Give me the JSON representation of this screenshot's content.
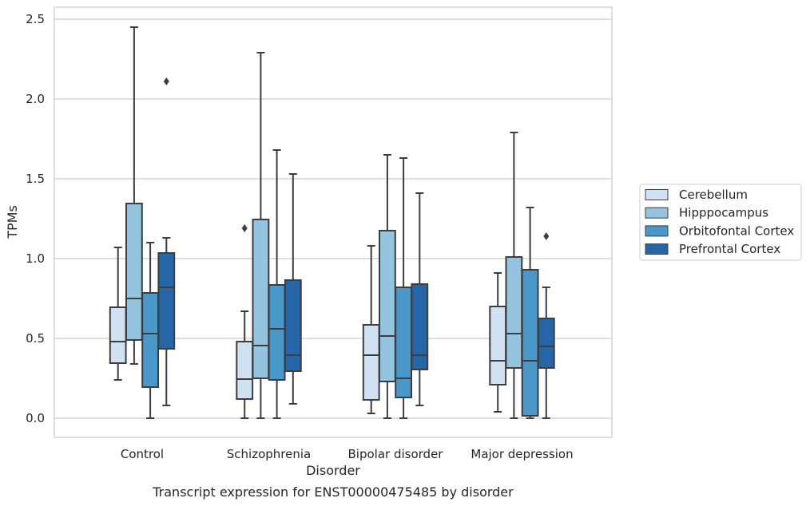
{
  "chart_data": {
    "type": "box",
    "title": "",
    "caption": "Transcript expression for ENST00000475485 by disorder",
    "xlabel": "Disorder",
    "ylabel": "TPMs",
    "ylim": [
      -0.12,
      2.58
    ],
    "yticks": [
      0.0,
      0.5,
      1.0,
      1.5,
      2.0,
      2.5
    ],
    "ytick_labels": [
      "0.0",
      "0.5",
      "1.0",
      "1.5",
      "2.0",
      "2.5"
    ],
    "categories": [
      "Control",
      "Schizophrenia",
      "Bipolar disorder",
      "Major depression"
    ],
    "grid": true,
    "legend_position": "right",
    "series": [
      {
        "name": "Cerebellum",
        "color": "#d0e1f2",
        "boxes": [
          {
            "whisker_low": 0.24,
            "q1": 0.345,
            "median": 0.48,
            "q3": 0.695,
            "whisker_high": 1.07,
            "outliers": []
          },
          {
            "whisker_low": 0.0,
            "q1": 0.12,
            "median": 0.245,
            "q3": 0.48,
            "whisker_high": 0.67,
            "outliers": [
              1.19
            ]
          },
          {
            "whisker_low": 0.03,
            "q1": 0.115,
            "median": 0.395,
            "q3": 0.585,
            "whisker_high": 1.08,
            "outliers": []
          },
          {
            "whisker_low": 0.04,
            "q1": 0.21,
            "median": 0.36,
            "q3": 0.7,
            "whisker_high": 0.91,
            "outliers": []
          }
        ]
      },
      {
        "name": "Hipppocampus",
        "color": "#94c4df",
        "boxes": [
          {
            "whisker_low": 0.34,
            "q1": 0.49,
            "median": 0.75,
            "q3": 1.345,
            "whisker_high": 2.45,
            "outliers": []
          },
          {
            "whisker_low": 0.0,
            "q1": 0.25,
            "median": 0.455,
            "q3": 1.245,
            "whisker_high": 2.29,
            "outliers": []
          },
          {
            "whisker_low": 0.0,
            "q1": 0.23,
            "median": 0.515,
            "q3": 1.175,
            "whisker_high": 1.65,
            "outliers": []
          },
          {
            "whisker_low": 0.0,
            "q1": 0.315,
            "median": 0.53,
            "q3": 1.01,
            "whisker_high": 1.79,
            "outliers": []
          }
        ]
      },
      {
        "name": "Orbitofontal Cortex",
        "color": "#4a98c9",
        "boxes": [
          {
            "whisker_low": 0.0,
            "q1": 0.195,
            "median": 0.53,
            "q3": 0.785,
            "whisker_high": 1.1,
            "outliers": []
          },
          {
            "whisker_low": 0.0,
            "q1": 0.24,
            "median": 0.56,
            "q3": 0.835,
            "whisker_high": 1.68,
            "outliers": []
          },
          {
            "whisker_low": 0.0,
            "q1": 0.13,
            "median": 0.25,
            "q3": 0.82,
            "whisker_high": 1.63,
            "outliers": []
          },
          {
            "whisker_low": 0.0,
            "q1": 0.015,
            "median": 0.36,
            "q3": 0.93,
            "whisker_high": 1.32,
            "outliers": []
          }
        ]
      },
      {
        "name": "Prefrontal Cortex",
        "color": "#2666a8",
        "boxes": [
          {
            "whisker_low": 0.08,
            "q1": 0.435,
            "median": 0.82,
            "q3": 1.035,
            "whisker_high": 1.13,
            "outliers": [
              2.11
            ]
          },
          {
            "whisker_low": 0.09,
            "q1": 0.295,
            "median": 0.395,
            "q3": 0.865,
            "whisker_high": 1.53,
            "outliers": []
          },
          {
            "whisker_low": 0.08,
            "q1": 0.305,
            "median": 0.395,
            "q3": 0.84,
            "whisker_high": 1.41,
            "outliers": []
          },
          {
            "whisker_low": 0.0,
            "q1": 0.315,
            "median": 0.45,
            "q3": 0.625,
            "whisker_high": 0.82,
            "outliers": [
              1.14
            ]
          }
        ]
      }
    ]
  }
}
